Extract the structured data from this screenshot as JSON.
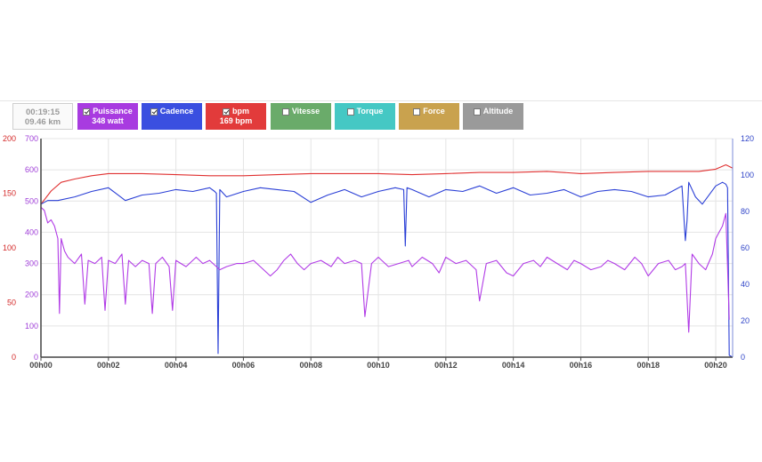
{
  "summary": {
    "time": "00:19:15",
    "distance": "09.46 km"
  },
  "buttons": [
    {
      "label": "Puissance",
      "sub": "348 watt",
      "checked": true,
      "color": "#a83be0"
    },
    {
      "label": "Cadence",
      "sub": "",
      "checked": true,
      "color": "#3a4fe0"
    },
    {
      "label": "bpm",
      "sub": "169 bpm",
      "checked": true,
      "color": "#e23b3b"
    },
    {
      "label": "Vitesse",
      "sub": "",
      "checked": false,
      "color": "#6aab6a"
    },
    {
      "label": "Torque",
      "sub": "",
      "checked": false,
      "color": "#45c8c4"
    },
    {
      "label": "Force",
      "sub": "",
      "checked": false,
      "color": "#c9a24e"
    },
    {
      "label": "Altitude",
      "sub": "",
      "checked": false,
      "color": "#9a9a9a"
    }
  ],
  "chart_data": {
    "type": "line",
    "x_unit": "minutes",
    "xlim": [
      0,
      20.5
    ],
    "x_ticks": [
      {
        "v": 0,
        "label": "00h00"
      },
      {
        "v": 2,
        "label": "00h02"
      },
      {
        "v": 4,
        "label": "00h04"
      },
      {
        "v": 6,
        "label": "00h06"
      },
      {
        "v": 8,
        "label": "00h08"
      },
      {
        "v": 10,
        "label": "00h10"
      },
      {
        "v": 12,
        "label": "00h12"
      },
      {
        "v": 14,
        "label": "00h14"
      },
      {
        "v": 16,
        "label": "00h16"
      },
      {
        "v": 18,
        "label": "00h18"
      },
      {
        "v": 20,
        "label": "00h20"
      }
    ],
    "axes": {
      "bpm": {
        "range": [
          0,
          200
        ],
        "ticks": [
          "0",
          "50",
          "100",
          "150",
          "200"
        ],
        "color": "#d42a2a"
      },
      "power": {
        "range": [
          0,
          700
        ],
        "ticks": [
          "0",
          "100",
          "200",
          "300",
          "400",
          "500",
          "600",
          "700"
        ],
        "color": "#a040d8"
      },
      "cadence": {
        "range": [
          0,
          120
        ],
        "ticks": [
          "0",
          "20",
          "40",
          "60",
          "80",
          "100",
          "120"
        ],
        "color": "#3045c8"
      }
    },
    "grid": true,
    "series": [
      {
        "name": "bpm",
        "axis": "bpm",
        "color": "#e03030",
        "x": [
          0,
          0.3,
          0.6,
          1,
          1.5,
          2,
          3,
          4,
          5,
          6,
          7,
          8,
          9,
          10,
          11,
          12,
          13,
          14,
          15,
          16,
          17,
          18,
          19,
          19.5,
          20,
          20.3,
          20.5
        ],
        "y": [
          140,
          152,
          160,
          163,
          166,
          168,
          168,
          167,
          166,
          166,
          167,
          168,
          168,
          168,
          167,
          168,
          169,
          169,
          170,
          168,
          169,
          170,
          170,
          170,
          172,
          176,
          173
        ]
      },
      {
        "name": "Cadence",
        "axis": "cadence",
        "color": "#2a3fd6",
        "x": [
          0,
          0.2,
          0.5,
          1,
          1.5,
          2,
          2.5,
          3,
          3.5,
          4,
          4.5,
          5,
          5.15,
          5.2,
          5.25,
          5.3,
          5.5,
          6,
          6.5,
          7,
          7.5,
          8,
          8.5,
          9,
          9.5,
          10,
          10.5,
          10.75,
          10.8,
          10.85,
          11,
          11.5,
          12,
          12.5,
          13,
          13.5,
          14,
          14.5,
          15,
          15.5,
          16,
          16.5,
          17,
          17.5,
          18,
          18.5,
          19,
          19.1,
          19.15,
          19.2,
          19.4,
          19.6,
          20,
          20.2,
          20.3,
          20.35,
          20.4,
          20.5
        ],
        "y": [
          84,
          86,
          86,
          88,
          91,
          93,
          86,
          89,
          90,
          92,
          91,
          93,
          91,
          90,
          2,
          92,
          88,
          91,
          93,
          92,
          91,
          85,
          89,
          92,
          88,
          91,
          93,
          92,
          61,
          93,
          92,
          88,
          92,
          91,
          94,
          90,
          93,
          89,
          90,
          92,
          88,
          91,
          92,
          91,
          88,
          89,
          94,
          64,
          75,
          96,
          88,
          84,
          94,
          96,
          95,
          93,
          1,
          0
        ]
      },
      {
        "name": "Puissance",
        "axis": "power",
        "color": "#b13be6",
        "x": [
          0,
          0.1,
          0.2,
          0.3,
          0.4,
          0.5,
          0.55,
          0.6,
          0.7,
          0.8,
          1,
          1.2,
          1.3,
          1.4,
          1.6,
          1.8,
          1.9,
          2,
          2.2,
          2.4,
          2.5,
          2.6,
          2.8,
          3,
          3.2,
          3.3,
          3.4,
          3.6,
          3.8,
          3.9,
          4,
          4.3,
          4.6,
          4.8,
          5,
          5.3,
          5.5,
          5.8,
          6,
          6.3,
          6.5,
          6.8,
          7,
          7.2,
          7.4,
          7.6,
          7.8,
          8,
          8.3,
          8.6,
          8.8,
          9,
          9.3,
          9.5,
          9.6,
          9.8,
          10,
          10.3,
          10.6,
          10.9,
          11,
          11.3,
          11.6,
          11.8,
          12,
          12.3,
          12.6,
          12.9,
          13,
          13.2,
          13.5,
          13.8,
          14,
          14.3,
          14.6,
          14.8,
          15,
          15.3,
          15.6,
          15.8,
          16,
          16.3,
          16.6,
          16.8,
          17,
          17.3,
          17.6,
          17.8,
          18,
          18.3,
          18.6,
          18.8,
          19,
          19.1,
          19.2,
          19.3,
          19.5,
          19.7,
          19.9,
          20,
          20.1,
          20.2,
          20.3,
          20.4
        ],
        "y": [
          480,
          470,
          430,
          440,
          420,
          380,
          140,
          380,
          340,
          320,
          300,
          330,
          170,
          310,
          300,
          320,
          150,
          310,
          300,
          330,
          170,
          310,
          290,
          310,
          300,
          140,
          300,
          320,
          290,
          150,
          310,
          290,
          320,
          300,
          310,
          280,
          290,
          300,
          300,
          310,
          290,
          260,
          280,
          310,
          330,
          300,
          280,
          300,
          310,
          290,
          320,
          300,
          310,
          300,
          130,
          300,
          320,
          290,
          300,
          310,
          290,
          320,
          300,
          270,
          320,
          300,
          310,
          280,
          180,
          300,
          310,
          270,
          260,
          300,
          310,
          290,
          320,
          300,
          280,
          310,
          300,
          280,
          290,
          310,
          300,
          280,
          320,
          300,
          260,
          300,
          310,
          280,
          290,
          300,
          80,
          330,
          300,
          280,
          330,
          380,
          400,
          420,
          460,
          120
        ]
      }
    ]
  }
}
